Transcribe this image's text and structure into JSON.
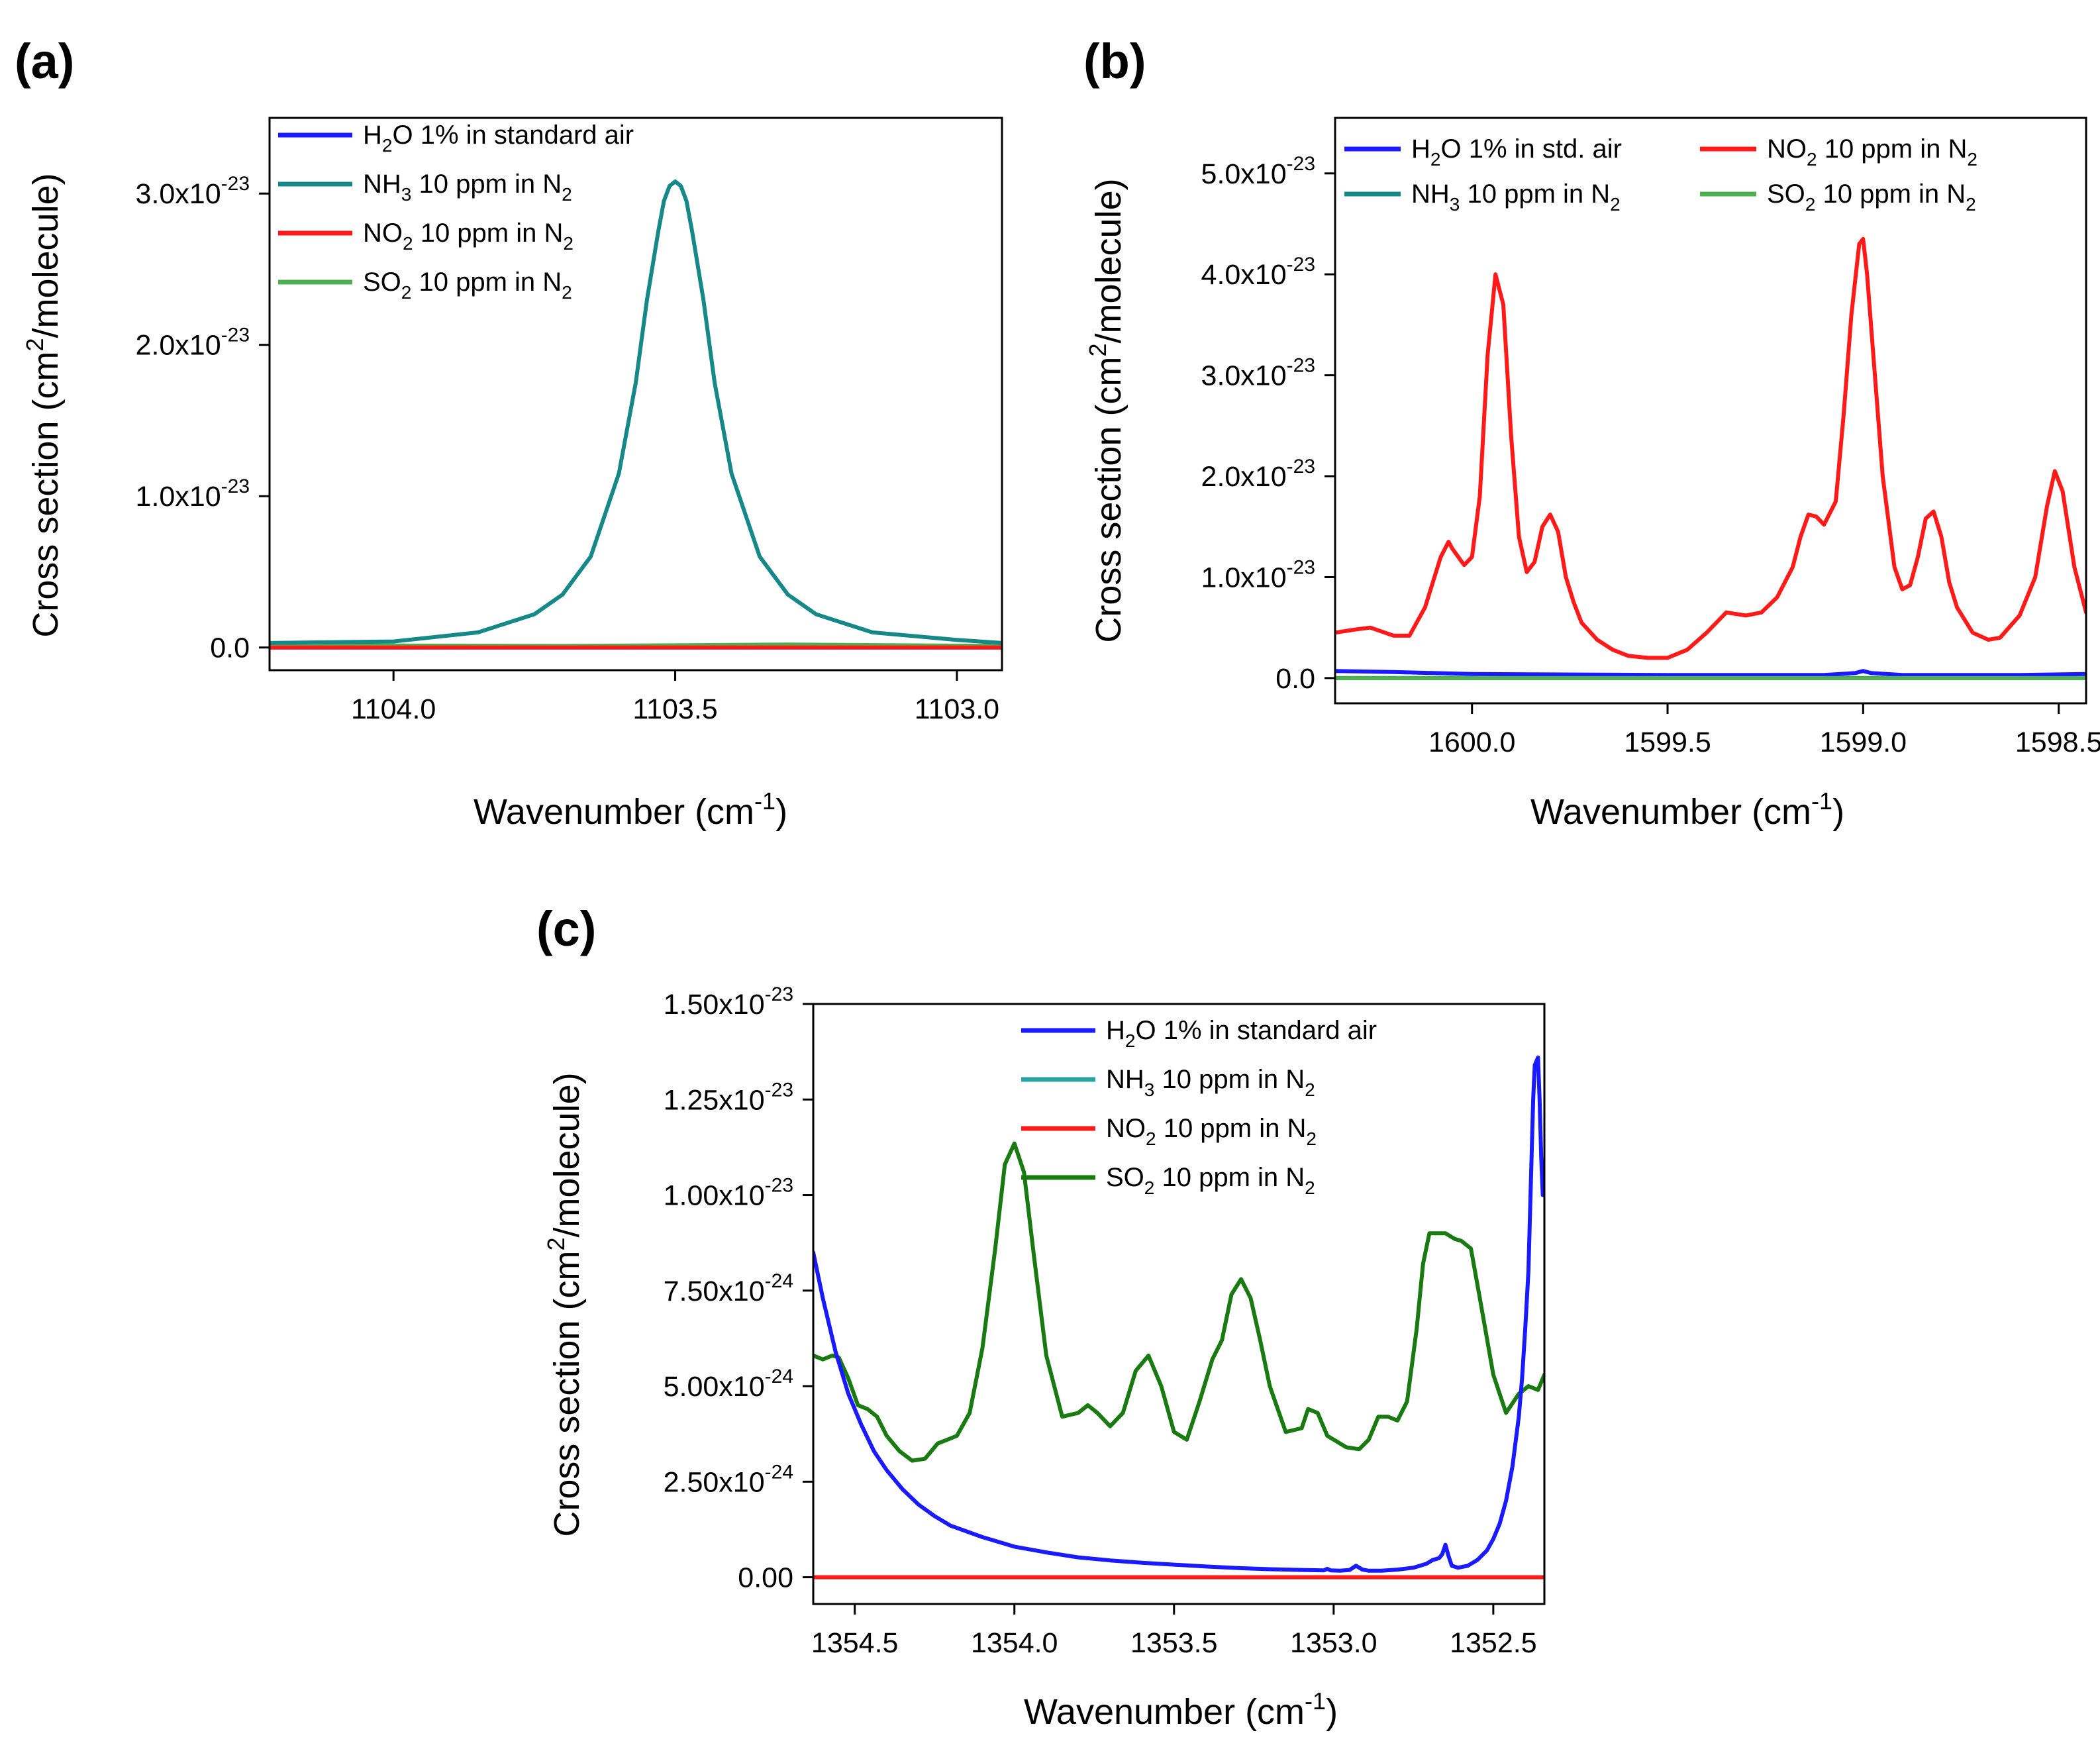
{
  "colors": {
    "h2o": "#1a1aff",
    "nh3": "#178888",
    "nh3_light": "#2aa4a0",
    "no2": "#ff1a1a",
    "so2_light": "#4caf50",
    "so2": "#1a7a12"
  },
  "chart_data": [
    {
      "panel": "(a)",
      "type": "line",
      "xlabel": "Wavenumber (cm",
      "xlabel_sup": "-1",
      "xlabel_end": ")",
      "ylabel": "Cross section (cm",
      "ylabel_sup": "2",
      "ylabel_end": "/molecule)",
      "xlim": [
        1104.22,
        1102.92
      ],
      "ylim": [
        -0.15,
        3.5
      ],
      "y_exponent": "-23",
      "x_ticks": [
        {
          "v": 1104.0,
          "label": "1104.0"
        },
        {
          "v": 1103.5,
          "label": "1103.5"
        },
        {
          "v": 1103.0,
          "label": "1103.0"
        }
      ],
      "y_ticks": [
        {
          "v": 0,
          "label": "0.0",
          "sup": ""
        },
        {
          "v": 1,
          "label": "1.0x10",
          "sup": "-23"
        },
        {
          "v": 2,
          "label": "2.0x10",
          "sup": "-23"
        },
        {
          "v": 3,
          "label": "3.0x10",
          "sup": "-23"
        }
      ],
      "legend": [
        {
          "text": "H",
          "sub": "2",
          "rest": "O 1% in standard air",
          "color": "h2o"
        },
        {
          "text": "NH",
          "sub": "3",
          "rest": " 10 ppm in N",
          "sub2": "2",
          "color": "nh3"
        },
        {
          "text": "NO",
          "sub": "2",
          "rest": " 10 ppm in N",
          "sub2": "2",
          "color": "no2"
        },
        {
          "text": "SO",
          "sub": "2",
          "rest": " 10 ppm in N",
          "sub2": "2",
          "color": "so2_light"
        }
      ],
      "series": [
        {
          "name": "H2O 1% in standard air",
          "color": "h2o",
          "x": [
            1104.22,
            1102.92
          ],
          "y": [
            0.0,
            0.0
          ]
        },
        {
          "name": "SO2 10 ppm in N2",
          "color": "so2_light",
          "x": [
            1104.22,
            1103.7,
            1103.3,
            1102.92
          ],
          "y": [
            0.015,
            0.01,
            0.02,
            0.01
          ]
        },
        {
          "name": "NO2 10 ppm in N2",
          "color": "no2",
          "x": [
            1104.22,
            1102.92
          ],
          "y": [
            0.0,
            0.0
          ]
        },
        {
          "name": "NH3 10 ppm in N2",
          "color": "nh3",
          "x": [
            1104.22,
            1104.0,
            1103.85,
            1103.75,
            1103.7,
            1103.65,
            1103.6,
            1103.57,
            1103.55,
            1103.53,
            1103.52,
            1103.51,
            1103.5,
            1103.49,
            1103.48,
            1103.47,
            1103.45,
            1103.43,
            1103.4,
            1103.35,
            1103.3,
            1103.25,
            1103.15,
            1103.0,
            1102.92
          ],
          "y": [
            0.03,
            0.04,
            0.1,
            0.22,
            0.35,
            0.6,
            1.15,
            1.75,
            2.3,
            2.75,
            2.95,
            3.05,
            3.08,
            3.05,
            2.95,
            2.75,
            2.3,
            1.75,
            1.15,
            0.6,
            0.35,
            0.22,
            0.1,
            0.05,
            0.03
          ]
        }
      ]
    },
    {
      "panel": "(b)",
      "type": "line",
      "xlabel": "Wavenumber (cm",
      "xlabel_sup": "-1",
      "xlabel_end": ")",
      "ylabel": "Cross section (cm",
      "ylabel_sup": "2",
      "ylabel_end": "/molecule)",
      "xlim": [
        1600.35,
        1598.43
      ],
      "ylim": [
        -0.25,
        5.55
      ],
      "y_exponent": "-23",
      "x_ticks": [
        {
          "v": 1600.0,
          "label": "1600.0"
        },
        {
          "v": 1599.5,
          "label": "1599.5"
        },
        {
          "v": 1599.0,
          "label": "1599.0"
        },
        {
          "v": 1598.5,
          "label": "1598.5"
        }
      ],
      "y_ticks": [
        {
          "v": 0,
          "label": "0.0",
          "sup": ""
        },
        {
          "v": 1,
          "label": "1.0x10",
          "sup": "-23"
        },
        {
          "v": 2,
          "label": "2.0x10",
          "sup": "-23"
        },
        {
          "v": 3,
          "label": "3.0x10",
          "sup": "-23"
        },
        {
          "v": 4,
          "label": "4.0x10",
          "sup": "-23"
        },
        {
          "v": 5,
          "label": "5.0x10",
          "sup": "-23"
        }
      ],
      "legend": [
        {
          "text": "H",
          "sub": "2",
          "rest": "O 1% in std. air",
          "color": "h2o"
        },
        {
          "text": "NH",
          "sub": "3",
          "rest": " 10 ppm in N",
          "sub2": "2",
          "color": "nh3"
        },
        {
          "text": "NO",
          "sub": "2",
          "rest": " 10 ppm in N",
          "sub2": "2",
          "color": "no2"
        },
        {
          "text": "SO",
          "sub": "2",
          "rest": " 10 ppm in N",
          "sub2": "2",
          "color": "so2_light"
        }
      ],
      "series": [
        {
          "name": "NH3 10 ppm in N2",
          "color": "nh3",
          "x": [
            1600.35,
            1598.43
          ],
          "y": [
            0.0,
            0.0
          ]
        },
        {
          "name": "NO2 10 ppm in N2",
          "color": "no2",
          "x": [
            1600.35,
            1600.3,
            1600.26,
            1600.2,
            1600.16,
            1600.12,
            1600.08,
            1600.06,
            1600.05,
            1600.02,
            1600.0,
            1599.98,
            1599.96,
            1599.94,
            1599.92,
            1599.9,
            1599.88,
            1599.86,
            1599.84,
            1599.82,
            1599.8,
            1599.78,
            1599.76,
            1599.74,
            1599.72,
            1599.68,
            1599.64,
            1599.6,
            1599.55,
            1599.5,
            1599.45,
            1599.4,
            1599.35,
            1599.3,
            1599.26,
            1599.22,
            1599.18,
            1599.16,
            1599.14,
            1599.12,
            1599.1,
            1599.07,
            1599.05,
            1599.03,
            1599.01,
            1599.0,
            1598.99,
            1598.97,
            1598.95,
            1598.92,
            1598.9,
            1598.88,
            1598.86,
            1598.84,
            1598.82,
            1598.8,
            1598.78,
            1598.76,
            1598.72,
            1598.68,
            1598.65,
            1598.6,
            1598.56,
            1598.53,
            1598.51,
            1598.49,
            1598.46,
            1598.43
          ],
          "y": [
            0.45,
            0.48,
            0.5,
            0.42,
            0.42,
            0.7,
            1.2,
            1.35,
            1.28,
            1.12,
            1.2,
            1.8,
            3.2,
            4.0,
            3.7,
            2.4,
            1.4,
            1.05,
            1.15,
            1.5,
            1.62,
            1.45,
            1.0,
            0.75,
            0.55,
            0.38,
            0.28,
            0.22,
            0.2,
            0.2,
            0.28,
            0.45,
            0.65,
            0.62,
            0.65,
            0.8,
            1.1,
            1.4,
            1.62,
            1.6,
            1.52,
            1.75,
            2.6,
            3.6,
            4.3,
            4.35,
            4.0,
            3.0,
            2.0,
            1.1,
            0.88,
            0.92,
            1.2,
            1.58,
            1.65,
            1.4,
            0.95,
            0.7,
            0.45,
            0.38,
            0.4,
            0.62,
            1.0,
            1.7,
            2.05,
            1.85,
            1.1,
            0.65
          ]
        },
        {
          "name": "H2O 1% in std. air",
          "color": "h2o",
          "x": [
            1600.35,
            1600.2,
            1600.0,
            1599.5,
            1599.1,
            1599.02,
            1599.0,
            1598.98,
            1598.9,
            1598.6,
            1598.43
          ],
          "y": [
            0.07,
            0.06,
            0.04,
            0.03,
            0.03,
            0.05,
            0.07,
            0.05,
            0.03,
            0.03,
            0.04
          ]
        },
        {
          "name": "SO2 10 ppm in N2",
          "color": "so2_light",
          "x": [
            1600.35,
            1598.43
          ],
          "y": [
            0.0,
            0.0
          ]
        }
      ]
    },
    {
      "panel": "(c)",
      "type": "line",
      "xlabel": "Wavenumber (cm",
      "xlabel_sup": "-1",
      "xlabel_end": ")",
      "ylabel": "Cross section (cm",
      "ylabel_sup": "2",
      "ylabel_end": "/molecule)",
      "xlim": [
        1354.63,
        1352.34
      ],
      "ylim": [
        -0.7,
        15.0
      ],
      "y_exponent": "",
      "x_ticks": [
        {
          "v": 1354.5,
          "label": "1354.5"
        },
        {
          "v": 1354.0,
          "label": "1354.0"
        },
        {
          "v": 1353.5,
          "label": "1353.5"
        },
        {
          "v": 1353.0,
          "label": "1353.0"
        },
        {
          "v": 1352.5,
          "label": "1352.5"
        }
      ],
      "y_ticks": [
        {
          "v": 0,
          "label": "0.00",
          "sup": ""
        },
        {
          "v": 2.5,
          "label": "2.50x10",
          "sup": "-24"
        },
        {
          "v": 5.0,
          "label": "5.00x10",
          "sup": "-24"
        },
        {
          "v": 7.5,
          "label": "7.50x10",
          "sup": "-24"
        },
        {
          "v": 10.0,
          "label": "1.00x10",
          "sup": "-23"
        },
        {
          "v": 12.5,
          "label": "1.25x10",
          "sup": "-23"
        },
        {
          "v": 15.0,
          "label": "1.50x10",
          "sup": "-23"
        }
      ],
      "legend": [
        {
          "text": "H",
          "sub": "2",
          "rest": "O 1% in standard air",
          "color": "h2o"
        },
        {
          "text": "NH",
          "sub": "3",
          "rest": " 10 ppm in N",
          "sub2": "2",
          "color": "nh3_light"
        },
        {
          "text": "NO",
          "sub": "2",
          "rest": " 10 ppm in N",
          "sub2": "2",
          "color": "no2"
        },
        {
          "text": "SO",
          "sub": "2",
          "rest": " 10 ppm in N",
          "sub2": "2",
          "color": "so2"
        }
      ],
      "series": [
        {
          "name": "SO2 10 ppm in N2",
          "color": "so2",
          "x": [
            1354.63,
            1354.6,
            1354.57,
            1354.55,
            1354.52,
            1354.49,
            1354.46,
            1354.43,
            1354.4,
            1354.36,
            1354.32,
            1354.28,
            1354.24,
            1354.21,
            1354.18,
            1354.14,
            1354.1,
            1354.06,
            1354.03,
            1354.0,
            1353.97,
            1353.94,
            1353.9,
            1353.85,
            1353.8,
            1353.77,
            1353.74,
            1353.7,
            1353.66,
            1353.62,
            1353.58,
            1353.54,
            1353.5,
            1353.46,
            1353.42,
            1353.38,
            1353.35,
            1353.32,
            1353.29,
            1353.26,
            1353.23,
            1353.2,
            1353.15,
            1353.1,
            1353.08,
            1353.05,
            1353.02,
            1352.99,
            1352.96,
            1352.92,
            1352.89,
            1352.86,
            1352.83,
            1352.8,
            1352.77,
            1352.74,
            1352.72,
            1352.7,
            1352.68,
            1352.65,
            1352.62,
            1352.6,
            1352.57,
            1352.54,
            1352.5,
            1352.46,
            1352.42,
            1352.39,
            1352.36,
            1352.34
          ],
          "y": [
            5.8,
            5.7,
            5.8,
            5.75,
            5.2,
            4.5,
            4.4,
            4.2,
            3.7,
            3.3,
            3.05,
            3.1,
            3.5,
            3.6,
            3.7,
            4.3,
            6.0,
            8.6,
            10.8,
            11.35,
            10.6,
            8.5,
            5.8,
            4.2,
            4.3,
            4.5,
            4.3,
            3.95,
            4.3,
            5.4,
            5.8,
            5.0,
            3.8,
            3.6,
            4.6,
            5.7,
            6.2,
            7.4,
            7.8,
            7.3,
            6.2,
            5.0,
            3.8,
            3.9,
            4.4,
            4.3,
            3.7,
            3.55,
            3.4,
            3.35,
            3.6,
            4.2,
            4.2,
            4.1,
            4.6,
            6.5,
            8.2,
            9.0,
            9.0,
            9.0,
            8.85,
            8.8,
            8.6,
            7.2,
            5.3,
            4.3,
            4.8,
            5.0,
            4.9,
            5.3
          ]
        },
        {
          "name": "H2O 1% in standard air",
          "color": "h2o",
          "x": [
            1354.63,
            1354.6,
            1354.56,
            1354.52,
            1354.48,
            1354.44,
            1354.4,
            1354.35,
            1354.3,
            1354.25,
            1354.2,
            1354.1,
            1354.0,
            1353.9,
            1353.8,
            1353.7,
            1353.6,
            1353.5,
            1353.4,
            1353.3,
            1353.2,
            1353.1,
            1353.03,
            1353.02,
            1353.01,
            1352.98,
            1352.95,
            1352.93,
            1352.91,
            1352.89,
            1352.85,
            1352.8,
            1352.75,
            1352.71,
            1352.69,
            1352.67,
            1352.66,
            1352.65,
            1352.64,
            1352.63,
            1352.61,
            1352.58,
            1352.55,
            1352.52,
            1352.5,
            1352.48,
            1352.46,
            1352.44,
            1352.42,
            1352.41,
            1352.4,
            1352.39,
            1352.385,
            1352.38,
            1352.375,
            1352.37,
            1352.36,
            1352.355,
            1352.35,
            1352.345
          ],
          "y": [
            8.5,
            7.3,
            5.9,
            4.8,
            4.0,
            3.3,
            2.8,
            2.3,
            1.9,
            1.6,
            1.35,
            1.05,
            0.8,
            0.65,
            0.52,
            0.44,
            0.38,
            0.33,
            0.28,
            0.24,
            0.21,
            0.19,
            0.18,
            0.22,
            0.18,
            0.17,
            0.19,
            0.3,
            0.2,
            0.17,
            0.17,
            0.2,
            0.25,
            0.35,
            0.45,
            0.5,
            0.6,
            0.85,
            0.55,
            0.3,
            0.25,
            0.3,
            0.45,
            0.7,
            1.0,
            1.4,
            2.0,
            2.9,
            4.2,
            5.2,
            6.5,
            8.0,
            9.5,
            11.0,
            12.5,
            13.4,
            13.6,
            12.5,
            11.0,
            10.0
          ]
        },
        {
          "name": "NH3 10 ppm in N2",
          "color": "nh3_light",
          "x": [
            1354.63,
            1352.34
          ],
          "y": [
            0.0,
            0.0
          ]
        },
        {
          "name": "NO2 10 ppm in N2",
          "color": "no2",
          "x": [
            1354.63,
            1352.34
          ],
          "y": [
            0.0,
            0.0
          ]
        }
      ]
    }
  ]
}
